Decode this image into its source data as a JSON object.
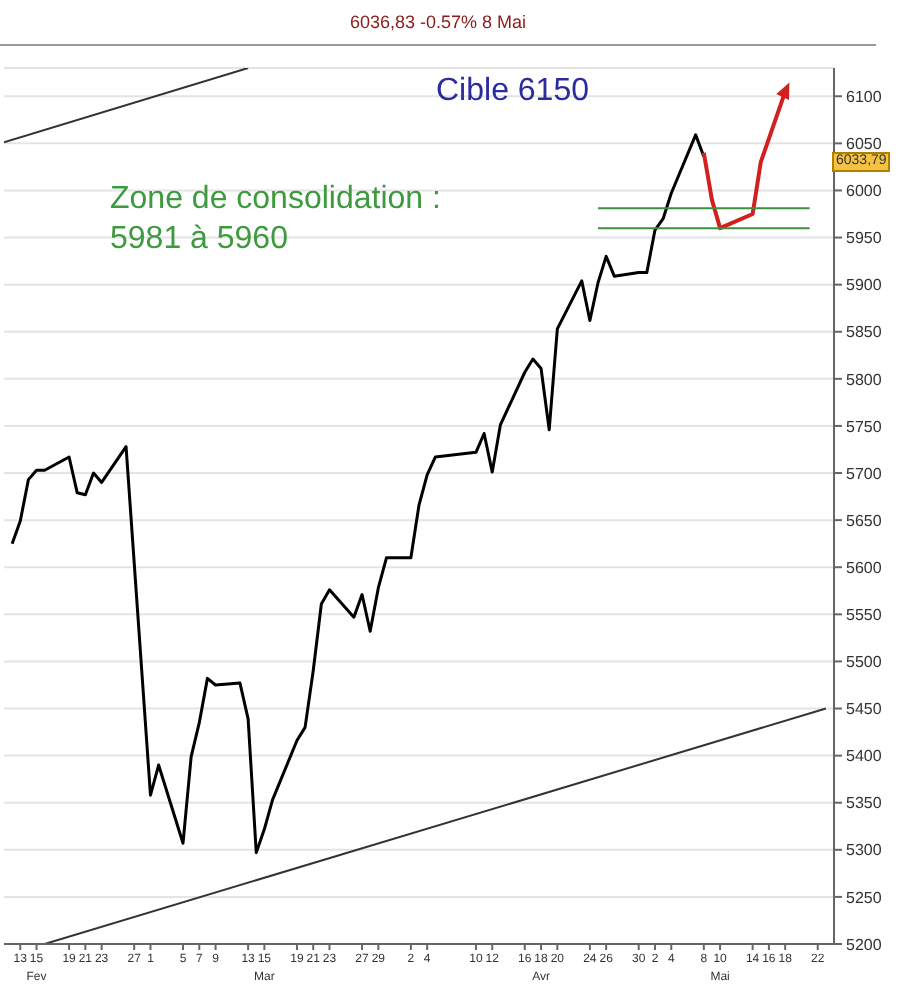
{
  "chart_data": {
    "type": "line",
    "title": "6036,83 -0.57% 8 Mai",
    "annotations": [
      "Cible 6150",
      "Zone de consolidation :\n5981 à 5960",
      {
        "text": "6033,79",
        "y": 6033.79
      }
    ],
    "series": [
      {
        "type": "line",
        "color": "#000000",
        "x": [
          "--02-12",
          "--02-13",
          "--02-14",
          "--02-15",
          "--02-16",
          "--02-19",
          "--02-20",
          "--02-21",
          "--02-22",
          "--02-23",
          "--02-26",
          "--03-01",
          "--03-02",
          "--03-05",
          "--03-06",
          "--03-07",
          "--03-08",
          "--03-09",
          "--03-12",
          "--03-13",
          "--03-14",
          "--03-15",
          "--03-16",
          "--03-19",
          "--03-20",
          "--03-21",
          "--03-22",
          "--03-23",
          "--03-26",
          "--03-27",
          "--03-28",
          "--03-29",
          "--03-30",
          "--04-02",
          "--04-03",
          "--04-04",
          "--04-05",
          "--04-10",
          "--04-11",
          "--04-12",
          "--04-13",
          "--04-16",
          "--04-17",
          "--04-18",
          "--04-19",
          "--04-20",
          "--04-23",
          "--04-24",
          "--04-25",
          "--04-26",
          "--04-27",
          "--04-30",
          "--05-01",
          "--05-02",
          "--05-03",
          "--05-04",
          "--05-07",
          "--05-08"
        ],
        "values": [
          5625,
          5649,
          5693,
          5703,
          5703,
          5717,
          5679,
          5677,
          5700,
          5690,
          5728,
          5358,
          5390,
          5307,
          5399,
          5435,
          5482,
          5475,
          5477,
          5439,
          5297,
          5322,
          5353,
          5416,
          5430,
          5490,
          5561,
          5576,
          5547,
          5571,
          5532,
          5578,
          5610,
          5610,
          5666,
          5698,
          5717,
          5722,
          5742,
          5701,
          5751,
          5807,
          5821,
          5811,
          5746,
          5853,
          5904,
          5862,
          5902,
          5930,
          5909,
          5913,
          5913,
          5958,
          5970,
          5997,
          6059,
          6036
        ]
      },
      {
        "type": "line",
        "color": "#d21f1f",
        "x": [
          "--05-08",
          "--05-09",
          "--05-10",
          "--05-14",
          "--05-15",
          "--05-18"
        ],
        "values": [
          6040,
          5990,
          5960,
          5975,
          6030,
          6105
        ]
      },
      {
        "type": "line",
        "color": "#3e8e3e",
        "x": [
          "--04-25",
          "--05-21"
        ],
        "values": [
          5981,
          5981
        ]
      },
      {
        "type": "line",
        "color": "#3e8e3e",
        "x": [
          "--04-25",
          "--05-21"
        ],
        "values": [
          5960,
          5960
        ]
      },
      {
        "type": "line",
        "color": "#333333",
        "x": [
          "--02-16",
          "--05-23"
        ],
        "values": [
          5200,
          5450
        ]
      },
      {
        "type": "line",
        "color": "#333333",
        "x": [
          "--02-11",
          "--03-13"
        ],
        "values": [
          6051,
          6130
        ]
      }
    ],
    "xlim": [
      "--02-11",
      "--05-24"
    ],
    "xticks": [
      {
        "value": "--02-13",
        "label": "13"
      },
      {
        "value": "--02-15",
        "label": "15\nFev"
      },
      {
        "value": "--02-19",
        "label": "19"
      },
      {
        "value": "--02-21",
        "label": "21"
      },
      {
        "value": "--02-23",
        "label": "23"
      },
      {
        "value": "--02-27",
        "label": "27"
      },
      {
        "value": "--03-01",
        "label": "1"
      },
      {
        "value": "--03-05",
        "label": "5"
      },
      {
        "value": "--03-07",
        "label": "7"
      },
      {
        "value": "--03-09",
        "label": "9"
      },
      {
        "value": "--03-13",
        "label": "13"
      },
      {
        "value": "--03-15",
        "label": "15\nMar"
      },
      {
        "value": "--03-19",
        "label": "19"
      },
      {
        "value": "--03-21",
        "label": "21"
      },
      {
        "value": "--03-23",
        "label": "23"
      },
      {
        "value": "--03-27",
        "label": "27"
      },
      {
        "value": "--03-29",
        "label": "29"
      },
      {
        "value": "--04-02",
        "label": "2"
      },
      {
        "value": "--04-04",
        "label": "4"
      },
      {
        "value": "--04-10",
        "label": "10"
      },
      {
        "value": "--04-12",
        "label": "12"
      },
      {
        "value": "--04-16",
        "label": "16"
      },
      {
        "value": "--04-18",
        "label": "18\nAvr"
      },
      {
        "value": "--04-20",
        "label": "20"
      },
      {
        "value": "--04-24",
        "label": "24"
      },
      {
        "value": "--04-26",
        "label": "26"
      },
      {
        "value": "--04-30",
        "label": "30"
      },
      {
        "value": "--05-02",
        "label": "2"
      },
      {
        "value": "--05-04",
        "label": "4"
      },
      {
        "value": "--05-08",
        "label": "8"
      },
      {
        "value": "--05-10",
        "label": "10\nMai"
      },
      {
        "value": "--05-14",
        "label": "14"
      },
      {
        "value": "--05-16",
        "label": "16"
      },
      {
        "value": "--05-18",
        "label": "18"
      },
      {
        "value": "--05-22",
        "label": "22"
      }
    ],
    "ylim": [
      5200,
      6130
    ],
    "yticks": [
      5200,
      5250,
      5300,
      5350,
      5400,
      5450,
      5500,
      5550,
      5600,
      5650,
      5700,
      5750,
      5800,
      5850,
      5900,
      5950,
      6000,
      6050,
      6100
    ],
    "grid": "y",
    "marker": "none",
    "line_style": "solid"
  }
}
